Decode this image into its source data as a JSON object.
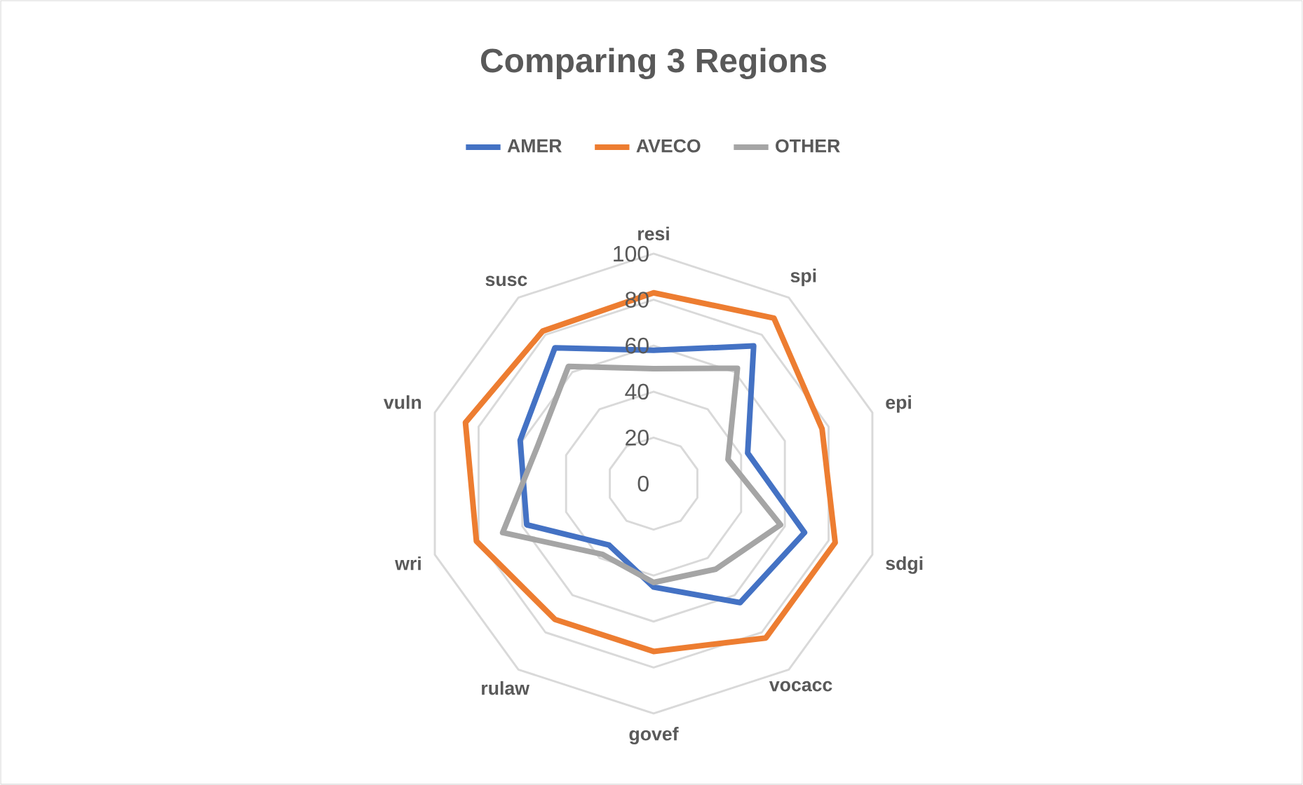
{
  "chart_data": {
    "type": "radar",
    "title": "Comparing 3 Regions",
    "categories": [
      "resi",
      "spi",
      "epi",
      "sdgi",
      "vocacc",
      "govef",
      "rulaw",
      "wri",
      "vuln",
      "susc"
    ],
    "series": [
      {
        "name": "AMER",
        "color": "#4472c4",
        "values": [
          58,
          74,
          43,
          69,
          64,
          45,
          33,
          58,
          61,
          73
        ]
      },
      {
        "name": "AVECO",
        "color": "#ed7d31",
        "values": [
          83,
          89,
          77,
          83,
          83,
          73,
          73,
          81,
          86,
          82
        ]
      },
      {
        "name": "OTHER",
        "color": "#a5a5a5",
        "values": [
          50,
          62,
          34,
          58,
          46,
          43,
          38,
          69,
          53,
          63
        ]
      }
    ],
    "ylim": [
      0,
      100
    ],
    "yticks": [
      0,
      20,
      40,
      60,
      80,
      100
    ],
    "grid": true,
    "legend": "top"
  }
}
